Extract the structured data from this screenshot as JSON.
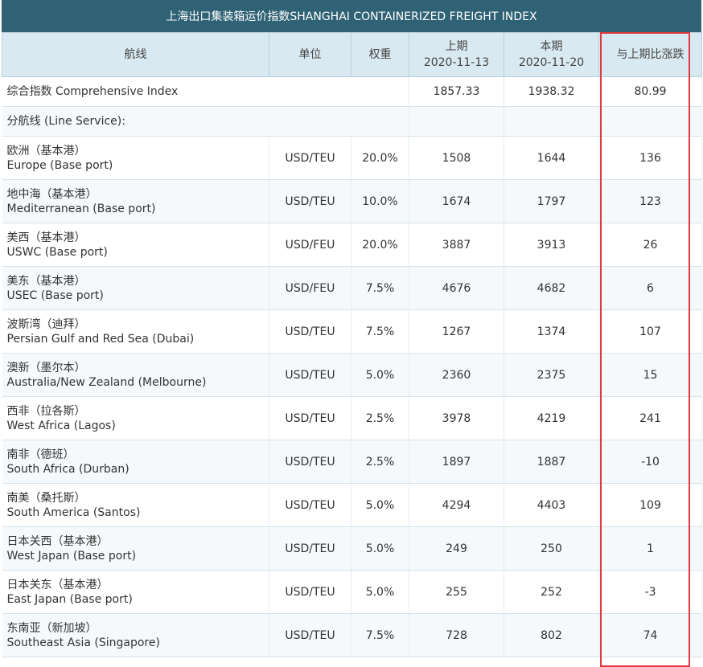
{
  "title": "上海出口集装箱运价指数SHANGHAI CONTAINERIZED FREIGHT INDEX",
  "headers": {
    "route": "航线",
    "unit": "单位",
    "weight": "权重",
    "prev_label": "上期",
    "prev_date": "2020-11-13",
    "curr_label": "本期",
    "curr_date": "2020-11-20",
    "change": "与上期比涨跌"
  },
  "comprehensive": {
    "route": "综合指数 Comprehensive Index",
    "prev": "1857.33",
    "curr": "1938.32",
    "change": "80.99"
  },
  "line_service_label": "分航线 (Line Service):",
  "rows": [
    {
      "cn": "欧洲（基本港）",
      "en": "Europe (Base port)",
      "unit": "USD/TEU",
      "weight": "20.0%",
      "prev": "1508",
      "curr": "1644",
      "change": "136"
    },
    {
      "cn": "地中海（基本港）",
      "en": "Mediterranean (Base port)",
      "unit": "USD/TEU",
      "weight": "10.0%",
      "prev": "1674",
      "curr": "1797",
      "change": "123"
    },
    {
      "cn": "美西（基本港）",
      "en": "USWC (Base port)",
      "unit": "USD/FEU",
      "weight": "20.0%",
      "prev": "3887",
      "curr": "3913",
      "change": "26"
    },
    {
      "cn": "美东（基本港）",
      "en": "USEC (Base port)",
      "unit": "USD/FEU",
      "weight": "7.5%",
      "prev": "4676",
      "curr": "4682",
      "change": "6"
    },
    {
      "cn": "波斯湾（迪拜）",
      "en": "Persian Gulf and Red Sea (Dubai)",
      "unit": "USD/TEU",
      "weight": "7.5%",
      "prev": "1267",
      "curr": "1374",
      "change": "107"
    },
    {
      "cn": "澳新（墨尔本）",
      "en": "Australia/New Zealand (Melbourne)",
      "unit": "USD/TEU",
      "weight": "5.0%",
      "prev": "2360",
      "curr": "2375",
      "change": "15"
    },
    {
      "cn": "西非（拉各斯）",
      "en": "West Africa (Lagos)",
      "unit": "USD/TEU",
      "weight": "2.5%",
      "prev": "3978",
      "curr": "4219",
      "change": "241"
    },
    {
      "cn": "南非（德班）",
      "en": "South Africa (Durban)",
      "unit": "USD/TEU",
      "weight": "2.5%",
      "prev": "1897",
      "curr": "1887",
      "change": "-10"
    },
    {
      "cn": "南美（桑托斯）",
      "en": "South America (Santos)",
      "unit": "USD/TEU",
      "weight": "5.0%",
      "prev": "4294",
      "curr": "4403",
      "change": "109"
    },
    {
      "cn": "日本关西（基本港）",
      "en": "West Japan (Base port)",
      "unit": "USD/TEU",
      "weight": "5.0%",
      "prev": "249",
      "curr": "250",
      "change": "1"
    },
    {
      "cn": "日本关东（基本港）",
      "en": "East Japan (Base port)",
      "unit": "USD/TEU",
      "weight": "5.0%",
      "prev": "255",
      "curr": "252",
      "change": "-3"
    },
    {
      "cn": "东南亚（新加坡）",
      "en": "Southeast Asia (Singapore)",
      "unit": "USD/TEU",
      "weight": "7.5%",
      "prev": "728",
      "curr": "802",
      "change": "74"
    }
  ],
  "colors": {
    "title_bar": "#2f6275",
    "header_bg": "#d9e9f1",
    "highlight_border": "#e0383e"
  }
}
